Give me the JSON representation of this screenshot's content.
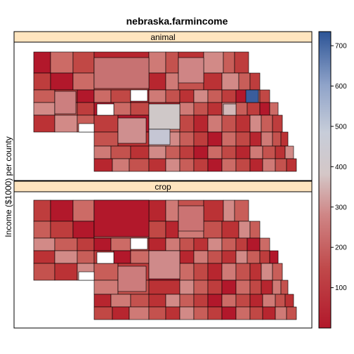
{
  "title": "nebraska.farmincome",
  "ylabel": "Income ($1000) per county",
  "panels": [
    {
      "label": "animal"
    },
    {
      "label": "crop"
    }
  ],
  "legend": {
    "ticks": [
      "100",
      "200",
      "300",
      "400",
      "500",
      "600",
      "700"
    ],
    "range": [
      0,
      735
    ],
    "colors": [
      "#b2182b",
      "#d6604d",
      "#f4a582",
      "#cfc8c8",
      "#92a8d1",
      "#3a5d9c"
    ]
  },
  "colors": {
    "strip_bg": "#ffe5bf",
    "frame": "#000000",
    "county_border": "#000000"
  },
  "chart_data": {
    "type": "heatmap",
    "title": "nebraska.farmincome",
    "ylabel": "Income ($1000) per county",
    "panels": [
      "animal",
      "crop"
    ],
    "color_scale": {
      "min": 0,
      "max": 735,
      "ticks": [
        100,
        200,
        300,
        400,
        500,
        600,
        700
      ]
    }
  }
}
